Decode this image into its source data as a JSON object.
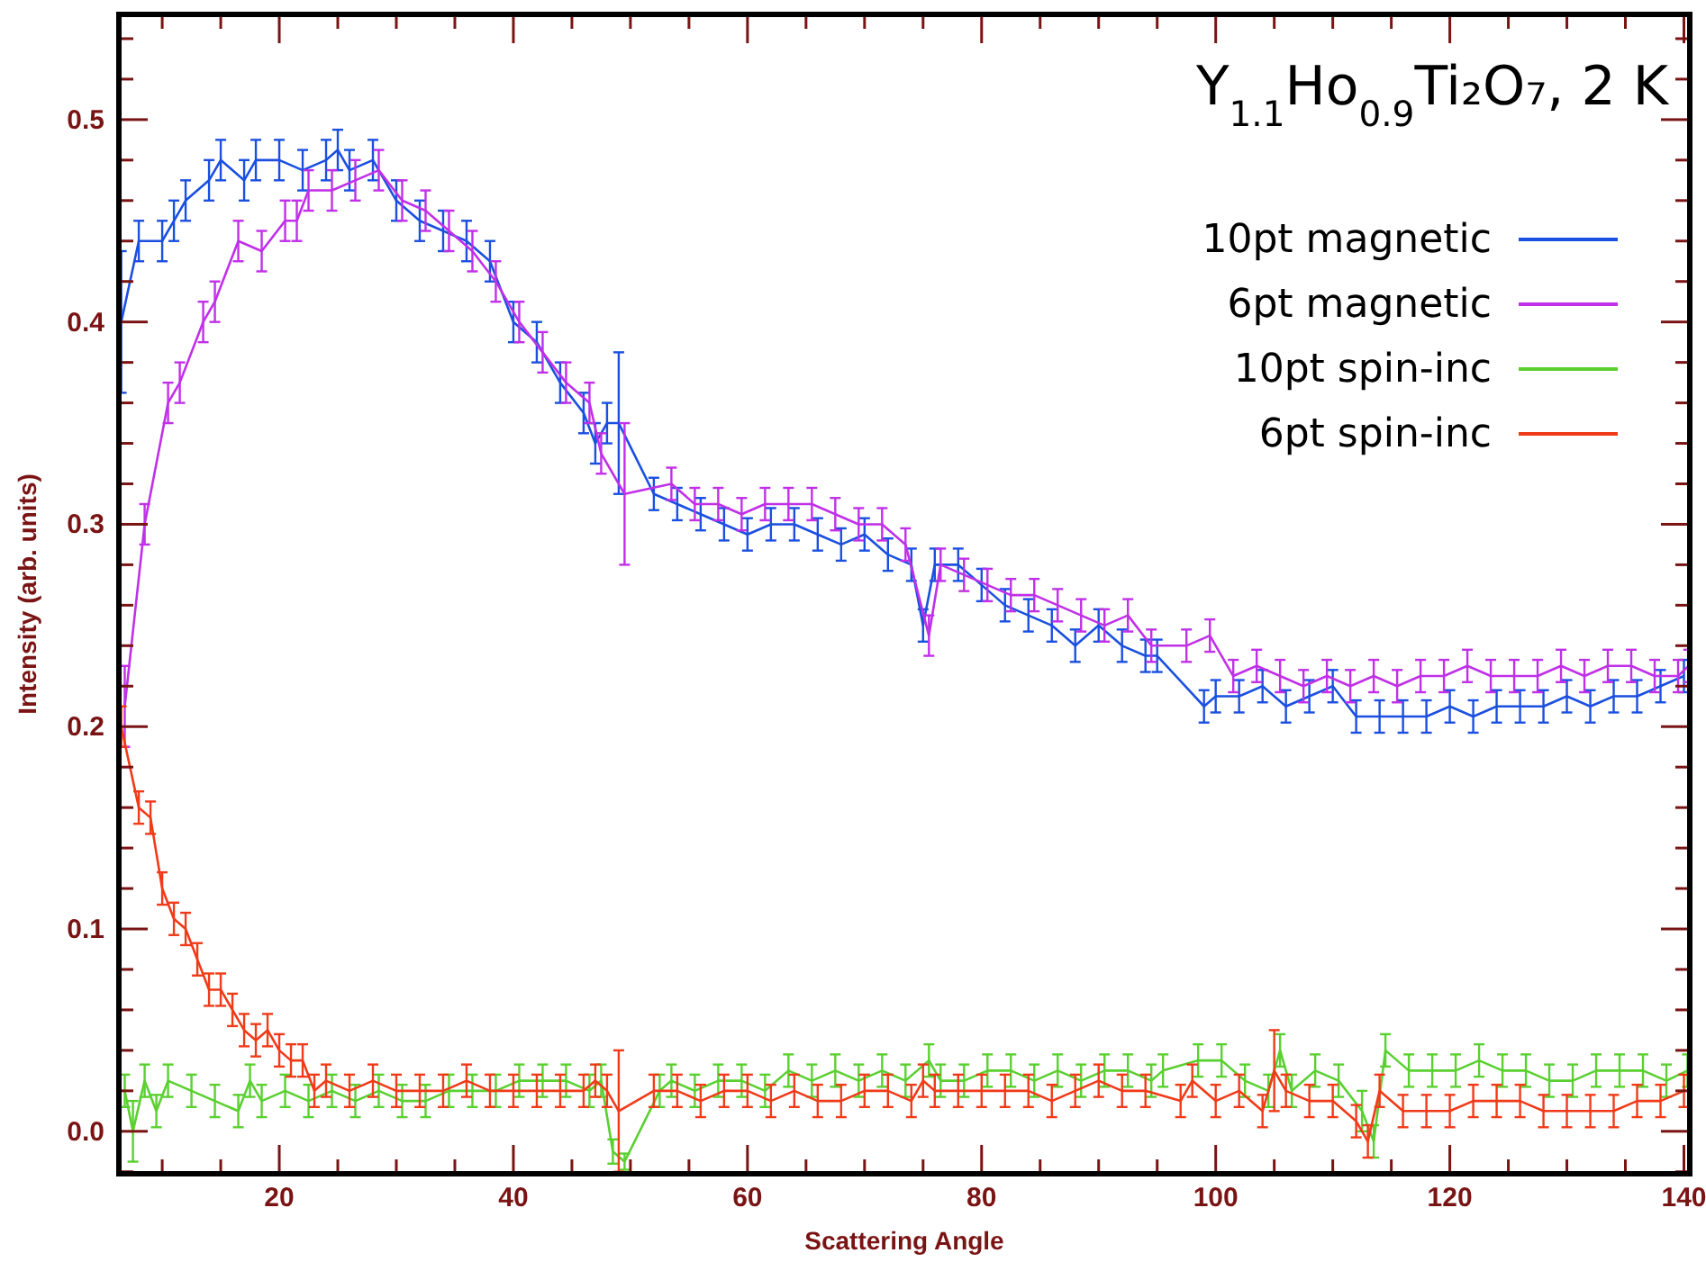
{
  "chart_data": {
    "type": "line",
    "title": "Y$_{1.1}$Ho$_{0.9}$Ti₂O₇, 2 K",
    "xlabel": "Scattering Angle",
    "ylabel": "Intensity (arb. units)",
    "xlim": [
      6.3,
      140.5
    ],
    "ylim": [
      -0.021,
      0.552
    ],
    "xticks": [
      {
        "value": 10,
        "label": null
      },
      {
        "value": 15,
        "label": null
      },
      20,
      {
        "value": 25,
        "label": null
      },
      {
        "value": 30,
        "label": null
      },
      {
        "value": 35,
        "label": null
      },
      40,
      {
        "value": 45,
        "label": null
      },
      {
        "value": 50,
        "label": null
      },
      {
        "value": 55,
        "label": null
      },
      60,
      {
        "value": 65,
        "label": null
      },
      {
        "value": 70,
        "label": null
      },
      {
        "value": 75,
        "label": null
      },
      80,
      {
        "value": 85,
        "label": null
      },
      {
        "value": 90,
        "label": null
      },
      {
        "value": 95,
        "label": null
      },
      100,
      {
        "value": 105,
        "label": null
      },
      {
        "value": 110,
        "label": null
      },
      {
        "value": 115,
        "label": null
      },
      120,
      {
        "value": 125,
        "label": null
      },
      {
        "value": 130,
        "label": null
      },
      {
        "value": 135,
        "label": null
      },
      140
    ],
    "yticks": [
      {
        "value": -0.02,
        "label": null
      },
      {
        "value": 0,
        "label": "0.0"
      },
      {
        "value": 0.02,
        "label": null
      },
      {
        "value": 0.04,
        "label": null
      },
      {
        "value": 0.06,
        "label": null
      },
      {
        "value": 0.08,
        "label": null
      },
      {
        "value": 0.1,
        "label": "0.1"
      },
      {
        "value": 0.12,
        "label": null
      },
      {
        "value": 0.14,
        "label": null
      },
      {
        "value": 0.16,
        "label": null
      },
      {
        "value": 0.18,
        "label": null
      },
      {
        "value": 0.2,
        "label": "0.2"
      },
      {
        "value": 0.22,
        "label": null
      },
      {
        "value": 0.24,
        "label": null
      },
      {
        "value": 0.26,
        "label": null
      },
      {
        "value": 0.28,
        "label": null
      },
      {
        "value": 0.3,
        "label": "0.3"
      },
      {
        "value": 0.32,
        "label": null
      },
      {
        "value": 0.34,
        "label": null
      },
      {
        "value": 0.36,
        "label": null
      },
      {
        "value": 0.38,
        "label": null
      },
      {
        "value": 0.4,
        "label": "0.4"
      },
      {
        "value": 0.42,
        "label": null
      },
      {
        "value": 0.44,
        "label": null
      },
      {
        "value": 0.46,
        "label": null
      },
      {
        "value": 0.48,
        "label": null
      },
      {
        "value": 0.5,
        "label": "0.5"
      },
      {
        "value": 0.52,
        "label": null
      },
      {
        "value": 0.54,
        "label": null
      }
    ],
    "legend": "top right",
    "grid": false,
    "marker": "none",
    "line_style": "solid",
    "series": [
      {
        "name": "10pt magnetic",
        "color": "#1a4fe0",
        "x": [
          6.5,
          8,
          10,
          11,
          12,
          14,
          15,
          17,
          18,
          20,
          22,
          24,
          25,
          26,
          28,
          30,
          32,
          34,
          36,
          38,
          40,
          42,
          44,
          46,
          47,
          48,
          49,
          52,
          54,
          56,
          58,
          60,
          62,
          64,
          66,
          68,
          70,
          72,
          74,
          75,
          76,
          78,
          80,
          82,
          84,
          86,
          88,
          90,
          92,
          94,
          95,
          99,
          100,
          102,
          104,
          106,
          108,
          110,
          112,
          114,
          116,
          118,
          120,
          122,
          124,
          126,
          128,
          130,
          132,
          134,
          136,
          138,
          140
        ],
        "values": [
          0.4,
          0.44,
          0.44,
          0.45,
          0.46,
          0.47,
          0.48,
          0.47,
          0.48,
          0.48,
          0.475,
          0.48,
          0.485,
          0.475,
          0.48,
          0.46,
          0.45,
          0.445,
          0.44,
          0.43,
          0.4,
          0.39,
          0.37,
          0.355,
          0.34,
          0.35,
          0.35,
          0.315,
          0.31,
          0.305,
          0.3,
          0.295,
          0.3,
          0.3,
          0.295,
          0.29,
          0.295,
          0.285,
          0.28,
          0.25,
          0.28,
          0.28,
          0.27,
          0.26,
          0.255,
          0.25,
          0.24,
          0.25,
          0.24,
          0.235,
          0.235,
          0.21,
          0.215,
          0.215,
          0.22,
          0.21,
          0.215,
          0.22,
          0.205,
          0.205,
          0.205,
          0.205,
          0.21,
          0.205,
          0.21,
          0.21,
          0.21,
          0.215,
          0.21,
          0.215,
          0.215,
          0.22,
          0.225
        ],
        "errors": [
          0.035,
          0.01,
          0.01,
          0.01,
          0.01,
          0.01,
          0.01,
          0.01,
          0.01,
          0.01,
          0.01,
          0.01,
          0.01,
          0.01,
          0.01,
          0.01,
          0.01,
          0.01,
          0.01,
          0.01,
          0.01,
          0.01,
          0.01,
          0.01,
          0.01,
          0.01,
          0.035,
          0.008,
          0.008,
          0.008,
          0.008,
          0.008,
          0.008,
          0.008,
          0.008,
          0.008,
          0.008,
          0.008,
          0.008,
          0.008,
          0.008,
          0.008,
          0.008,
          0.008,
          0.008,
          0.008,
          0.008,
          0.008,
          0.008,
          0.008,
          0.008,
          0.008,
          0.008,
          0.008,
          0.008,
          0.008,
          0.008,
          0.008,
          0.008,
          0.008,
          0.008,
          0.008,
          0.008,
          0.008,
          0.008,
          0.008,
          0.008,
          0.008,
          0.008,
          0.008,
          0.008,
          0.008,
          0.008
        ]
      },
      {
        "name": "6pt magnetic",
        "color": "#c030e8",
        "x": [
          6.8,
          8.5,
          10.5,
          11.5,
          13.5,
          14.5,
          16.5,
          18.5,
          20.5,
          21.5,
          22.5,
          24.5,
          26.5,
          28.5,
          30.5,
          32.5,
          34.5,
          36.5,
          38.5,
          40.5,
          42.5,
          44.5,
          46.5,
          47.5,
          49.5,
          53.5,
          55.5,
          57.5,
          59.5,
          61.5,
          63.5,
          65.5,
          67.5,
          69.5,
          71.5,
          73.5,
          75.5,
          76.5,
          78.5,
          80.5,
          82.5,
          84.5,
          86.5,
          88.5,
          90.5,
          92.5,
          94.5,
          97.5,
          99.5,
          101.5,
          103.5,
          105.5,
          107.5,
          109.5,
          111.5,
          113.5,
          115.5,
          117.5,
          119.5,
          121.5,
          123.5,
          125.5,
          127.5,
          129.5,
          131.5,
          133.5,
          135.5,
          137.5,
          139.5,
          140.4
        ],
        "values": [
          0.21,
          0.3,
          0.36,
          0.37,
          0.4,
          0.41,
          0.44,
          0.435,
          0.45,
          0.45,
          0.465,
          0.465,
          0.47,
          0.475,
          0.46,
          0.455,
          0.445,
          0.435,
          0.42,
          0.4,
          0.385,
          0.37,
          0.36,
          0.335,
          0.315,
          0.32,
          0.31,
          0.31,
          0.305,
          0.31,
          0.31,
          0.31,
          0.305,
          0.3,
          0.3,
          0.29,
          0.245,
          0.28,
          0.275,
          0.27,
          0.265,
          0.265,
          0.26,
          0.255,
          0.25,
          0.255,
          0.24,
          0.24,
          0.245,
          0.225,
          0.23,
          0.225,
          0.22,
          0.225,
          0.22,
          0.225,
          0.22,
          0.225,
          0.225,
          0.23,
          0.225,
          0.225,
          0.225,
          0.23,
          0.225,
          0.23,
          0.23,
          0.225,
          0.225,
          0.23
        ],
        "errors": [
          0.02,
          0.01,
          0.01,
          0.01,
          0.01,
          0.01,
          0.01,
          0.01,
          0.01,
          0.01,
          0.01,
          0.01,
          0.01,
          0.01,
          0.01,
          0.01,
          0.01,
          0.01,
          0.01,
          0.01,
          0.01,
          0.01,
          0.01,
          0.01,
          0.035,
          0.008,
          0.008,
          0.008,
          0.008,
          0.008,
          0.008,
          0.008,
          0.008,
          0.008,
          0.008,
          0.008,
          0.01,
          0.008,
          0.008,
          0.008,
          0.008,
          0.008,
          0.008,
          0.008,
          0.008,
          0.008,
          0.008,
          0.008,
          0.008,
          0.008,
          0.008,
          0.008,
          0.008,
          0.008,
          0.008,
          0.008,
          0.008,
          0.008,
          0.008,
          0.008,
          0.008,
          0.008,
          0.008,
          0.008,
          0.008,
          0.008,
          0.008,
          0.008,
          0.008,
          0.008
        ]
      },
      {
        "name": "10pt spin-inc",
        "color": "#5ad030",
        "x": [
          6.8,
          7.5,
          8.5,
          9.5,
          10.5,
          12.5,
          14.5,
          16.5,
          17.5,
          18.5,
          20.5,
          22.5,
          24.5,
          26.5,
          28.5,
          30.5,
          32.5,
          34.5,
          36.5,
          38.5,
          40.5,
          42.5,
          44.5,
          46.5,
          47.5,
          48.5,
          49.5,
          52.5,
          53.5,
          55.5,
          57.5,
          59.5,
          61.5,
          63.5,
          65.5,
          67.5,
          69.5,
          71.5,
          73.5,
          75.5,
          76.5,
          78.5,
          80.5,
          82.5,
          84.5,
          86.5,
          88.5,
          90.5,
          92.5,
          94.5,
          95.5,
          98.5,
          100.5,
          102.5,
          104.5,
          105.5,
          106.5,
          108.5,
          110.5,
          112.5,
          113.5,
          114.5,
          116.5,
          118.5,
          120.5,
          122.5,
          124.5,
          126.5,
          128.5,
          130.5,
          132.5,
          134.5,
          136.5,
          138.5,
          140.3
        ],
        "values": [
          0.02,
          0.0,
          0.025,
          0.01,
          0.025,
          0.02,
          0.015,
          0.01,
          0.025,
          0.015,
          0.02,
          0.015,
          0.02,
          0.015,
          0.02,
          0.015,
          0.015,
          0.02,
          0.02,
          0.02,
          0.025,
          0.025,
          0.025,
          0.02,
          0.025,
          -0.01,
          -0.015,
          0.02,
          0.025,
          0.02,
          0.025,
          0.025,
          0.02,
          0.03,
          0.025,
          0.03,
          0.025,
          0.03,
          0.025,
          0.035,
          0.025,
          0.025,
          0.03,
          0.03,
          0.025,
          0.03,
          0.025,
          0.03,
          0.03,
          0.025,
          0.03,
          0.035,
          0.035,
          0.025,
          0.02,
          0.04,
          0.02,
          0.03,
          0.025,
          0.01,
          -0.005,
          0.04,
          0.03,
          0.03,
          0.03,
          0.035,
          0.03,
          0.03,
          0.025,
          0.025,
          0.03,
          0.03,
          0.03,
          0.025,
          0.03
        ],
        "errors": [
          0.008,
          0.015,
          0.008,
          0.008,
          0.008,
          0.008,
          0.008,
          0.008,
          0.008,
          0.008,
          0.008,
          0.008,
          0.008,
          0.008,
          0.008,
          0.008,
          0.008,
          0.008,
          0.008,
          0.008,
          0.008,
          0.008,
          0.008,
          0.008,
          0.008,
          0.006,
          0.004,
          0.008,
          0.008,
          0.008,
          0.008,
          0.008,
          0.008,
          0.008,
          0.008,
          0.008,
          0.008,
          0.008,
          0.008,
          0.008,
          0.008,
          0.008,
          0.008,
          0.008,
          0.008,
          0.008,
          0.008,
          0.008,
          0.008,
          0.008,
          0.008,
          0.008,
          0.008,
          0.008,
          0.008,
          0.008,
          0.008,
          0.008,
          0.008,
          0.01,
          0.008,
          0.008,
          0.008,
          0.008,
          0.008,
          0.008,
          0.008,
          0.008,
          0.008,
          0.008,
          0.008,
          0.008,
          0.008,
          0.008,
          0.008
        ]
      },
      {
        "name": "6pt spin-inc",
        "color": "#f03a18",
        "x": [
          6.5,
          8,
          9,
          10,
          11,
          12,
          13,
          14,
          15,
          16,
          17,
          18,
          19,
          20,
          21,
          22,
          23,
          24,
          26,
          28,
          30,
          32,
          34,
          36,
          38,
          40,
          42,
          44,
          46,
          47,
          48,
          49,
          52,
          54,
          56,
          58,
          60,
          62,
          64,
          66,
          68,
          70,
          72,
          74,
          75,
          76,
          78,
          80,
          82,
          84,
          86,
          88,
          90,
          92,
          94,
          97,
          98,
          100,
          102,
          104,
          105,
          106,
          108,
          110,
          112,
          113,
          114,
          116,
          118,
          120,
          122,
          124,
          126,
          128,
          130,
          132,
          134,
          136,
          138,
          140
        ],
        "values": [
          0.2,
          0.16,
          0.155,
          0.12,
          0.105,
          0.1,
          0.085,
          0.07,
          0.07,
          0.06,
          0.05,
          0.045,
          0.05,
          0.04,
          0.035,
          0.035,
          0.02,
          0.025,
          0.02,
          0.025,
          0.02,
          0.02,
          0.02,
          0.025,
          0.02,
          0.02,
          0.02,
          0.02,
          0.02,
          0.025,
          0.02,
          0.01,
          0.02,
          0.02,
          0.015,
          0.02,
          0.02,
          0.015,
          0.02,
          0.015,
          0.015,
          0.02,
          0.02,
          0.015,
          0.025,
          0.02,
          0.02,
          0.02,
          0.02,
          0.02,
          0.015,
          0.02,
          0.025,
          0.02,
          0.02,
          0.015,
          0.025,
          0.015,
          0.02,
          0.01,
          0.03,
          0.02,
          0.015,
          0.015,
          0.005,
          -0.005,
          0.02,
          0.01,
          0.01,
          0.01,
          0.015,
          0.015,
          0.015,
          0.01,
          0.01,
          0.01,
          0.01,
          0.015,
          0.015,
          0.02
        ],
        "errors": [
          0.01,
          0.008,
          0.008,
          0.008,
          0.008,
          0.008,
          0.008,
          0.008,
          0.008,
          0.008,
          0.008,
          0.008,
          0.008,
          0.008,
          0.008,
          0.008,
          0.008,
          0.008,
          0.008,
          0.008,
          0.008,
          0.008,
          0.008,
          0.008,
          0.008,
          0.008,
          0.008,
          0.008,
          0.008,
          0.008,
          0.008,
          0.03,
          0.008,
          0.008,
          0.008,
          0.008,
          0.008,
          0.008,
          0.008,
          0.008,
          0.008,
          0.008,
          0.008,
          0.008,
          0.008,
          0.008,
          0.008,
          0.008,
          0.008,
          0.008,
          0.008,
          0.008,
          0.008,
          0.008,
          0.008,
          0.008,
          0.008,
          0.008,
          0.008,
          0.008,
          0.02,
          0.008,
          0.008,
          0.008,
          0.008,
          0.008,
          0.008,
          0.008,
          0.008,
          0.008,
          0.008,
          0.008,
          0.008,
          0.008,
          0.008,
          0.008,
          0.008,
          0.008,
          0.008,
          0.008
        ]
      }
    ]
  }
}
